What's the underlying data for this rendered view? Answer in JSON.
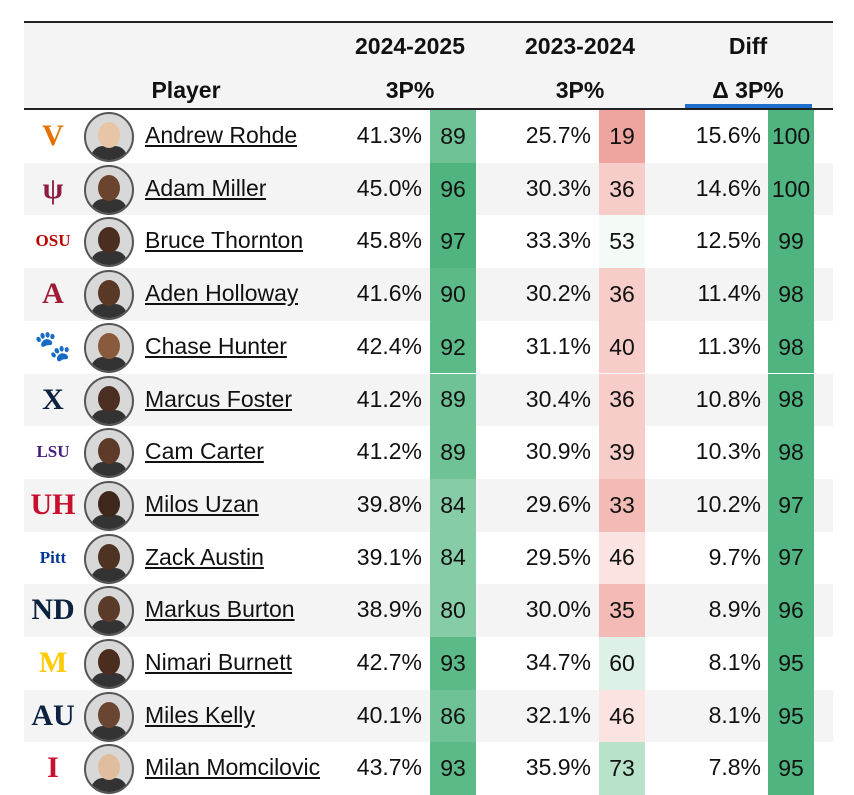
{
  "header": {
    "season1": "2024-2025",
    "season2": "2023-2024",
    "diff": "Diff",
    "player": "Player",
    "stat1": "3P%",
    "stat2": "3P%",
    "stat3": "Δ 3P%"
  },
  "colors": {
    "high_green": "#4cb27e",
    "mid_green": "#7cc79f",
    "low_red": "#f1a7a1",
    "light_red": "#f9d7d4",
    "neutral": "#f7fbf8",
    "underline_blue": "#1f6fcf"
  },
  "rows": [
    {
      "logo": "virginia-logo",
      "logo_text": "V",
      "logo_color": "#e57200",
      "name": "Andrew Rohde",
      "p25": "41.3%",
      "r25": "89",
      "p24": "25.7%",
      "r24": "19",
      "d": "15.6%",
      "rd": "100"
    },
    {
      "logo": "arizona-state-logo",
      "logo_text": "ψ",
      "logo_color": "#8c1d40",
      "name": "Adam Miller",
      "p25": "45.0%",
      "r25": "96",
      "p24": "30.3%",
      "r24": "36",
      "d": "14.6%",
      "rd": "100"
    },
    {
      "logo": "ohio-state-logo",
      "logo_text": "OSU",
      "logo_color": "#bb0000",
      "name": "Bruce Thornton",
      "p25": "45.8%",
      "r25": "97",
      "p24": "33.3%",
      "r24": "53",
      "d": "12.5%",
      "rd": "99"
    },
    {
      "logo": "alabama-logo",
      "logo_text": "A",
      "logo_color": "#9e1b32",
      "name": "Aden Holloway",
      "p25": "41.6%",
      "r25": "90",
      "p24": "30.2%",
      "r24": "36",
      "d": "11.4%",
      "rd": "98"
    },
    {
      "logo": "clemson-logo",
      "logo_text": "🐾",
      "logo_color": "#f56600",
      "name": "Chase Hunter",
      "p25": "42.4%",
      "r25": "92",
      "p24": "31.1%",
      "r24": "40",
      "d": "11.3%",
      "rd": "98"
    },
    {
      "logo": "xavier-logo",
      "logo_text": "X",
      "logo_color": "#0c2340",
      "name": "Marcus Foster",
      "p25": "41.2%",
      "r25": "89",
      "p24": "30.4%",
      "r24": "36",
      "d": "10.8%",
      "rd": "98"
    },
    {
      "logo": "lsu-logo",
      "logo_text": "LSU",
      "logo_color": "#461d7c",
      "name": "Cam Carter",
      "p25": "41.2%",
      "r25": "89",
      "p24": "30.9%",
      "r24": "39",
      "d": "10.3%",
      "rd": "98"
    },
    {
      "logo": "houston-logo",
      "logo_text": "UH",
      "logo_color": "#c8102e",
      "name": "Milos Uzan",
      "p25": "39.8%",
      "r25": "84",
      "p24": "29.6%",
      "r24": "33",
      "d": "10.2%",
      "rd": "97"
    },
    {
      "logo": "pitt-logo",
      "logo_text": "Pitt",
      "logo_color": "#003594",
      "name": "Zack Austin",
      "p25": "39.1%",
      "r25": "84",
      "p24": "29.5%",
      "r24": "46",
      "d": "9.7%",
      "rd": "97"
    },
    {
      "logo": "notre-dame-logo",
      "logo_text": "ND",
      "logo_color": "#0c2340",
      "name": "Markus Burton",
      "p25": "38.9%",
      "r25": "80",
      "p24": "30.0%",
      "r24": "35",
      "d": "8.9%",
      "rd": "96"
    },
    {
      "logo": "michigan-logo",
      "logo_text": "M",
      "logo_color": "#ffcb05",
      "name": "Nimari Burnett",
      "p25": "42.7%",
      "r25": "93",
      "p24": "34.7%",
      "r24": "60",
      "d": "8.1%",
      "rd": "95"
    },
    {
      "logo": "auburn-logo",
      "logo_text": "AU",
      "logo_color": "#0c2340",
      "name": "Miles Kelly",
      "p25": "40.1%",
      "r25": "86",
      "p24": "32.1%",
      "r24": "46",
      "d": "8.1%",
      "rd": "95"
    },
    {
      "logo": "iowa-state-logo",
      "logo_text": "I",
      "logo_color": "#c8102e",
      "name": "Milan Momcilovic",
      "p25": "43.7%",
      "r25": "93",
      "p24": "35.9%",
      "r24": "73",
      "d": "7.8%",
      "rd": "95"
    }
  ]
}
